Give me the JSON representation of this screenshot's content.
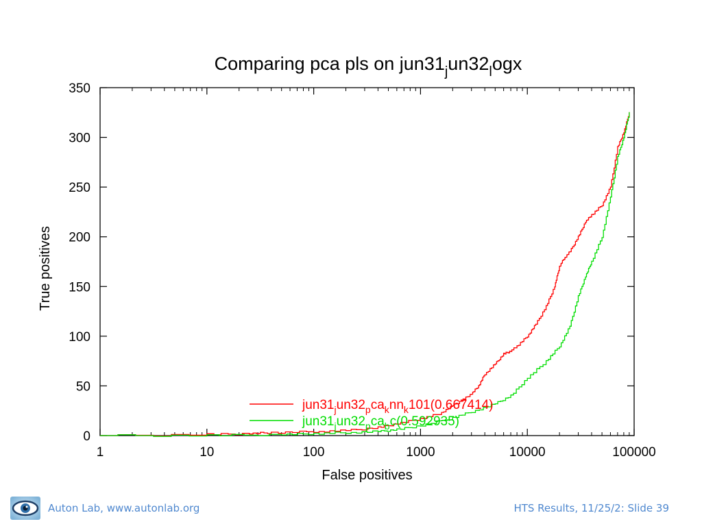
{
  "chart_data": {
    "type": "line",
    "title_parts": [
      {
        "t": "Comparing pca pls on jun31",
        "sub": false
      },
      {
        "t": "j",
        "sub": true
      },
      {
        "t": "un32",
        "sub": false
      },
      {
        "t": "l",
        "sub": true
      },
      {
        "t": "ogx",
        "sub": false
      }
    ],
    "xlabel": "False positives",
    "ylabel": "True positives",
    "xscale": "log",
    "xlim": [
      1,
      100000
    ],
    "ylim": [
      0,
      350
    ],
    "x_ticks": [
      1,
      10,
      100,
      1000,
      10000,
      100000
    ],
    "x_tick_labels": [
      "1",
      "10",
      "100",
      "1000",
      "10000",
      "100000"
    ],
    "y_ticks": [
      0,
      50,
      100,
      150,
      200,
      250,
      300,
      350
    ],
    "y_tick_labels": [
      "0",
      "50",
      "100",
      "150",
      "200",
      "250",
      "300",
      "350"
    ],
    "legend_position": "bottom-center",
    "series": [
      {
        "name_parts": [
          {
            "t": "jun31",
            "sub": false
          },
          {
            "t": "j",
            "sub": true
          },
          {
            "t": "un32",
            "sub": false
          },
          {
            "t": "p",
            "sub": true
          },
          {
            "t": "ca",
            "sub": false
          },
          {
            "t": "k",
            "sub": true
          },
          {
            "t": "nn",
            "sub": false
          },
          {
            "t": "k",
            "sub": true
          },
          {
            "t": "101(0.667414)",
            "sub": false
          }
        ],
        "color": "#ff0000",
        "points": [
          [
            1,
            0
          ],
          [
            10,
            1
          ],
          [
            25,
            2
          ],
          [
            40,
            3
          ],
          [
            100,
            4
          ],
          [
            200,
            5
          ],
          [
            400,
            8
          ],
          [
            600,
            12
          ],
          [
            1000,
            17
          ],
          [
            1500,
            22
          ],
          [
            2000,
            30
          ],
          [
            2500,
            36
          ],
          [
            3000,
            42
          ],
          [
            3500,
            50
          ],
          [
            4000,
            62
          ],
          [
            5000,
            72
          ],
          [
            6000,
            82
          ],
          [
            7000,
            85
          ],
          [
            8000,
            90
          ],
          [
            10000,
            100
          ],
          [
            12000,
            112
          ],
          [
            15000,
            130
          ],
          [
            18000,
            150
          ],
          [
            20000,
            170
          ],
          [
            22000,
            178
          ],
          [
            25000,
            185
          ],
          [
            30000,
            200
          ],
          [
            35000,
            215
          ],
          [
            40000,
            222
          ],
          [
            50000,
            232
          ],
          [
            60000,
            250
          ],
          [
            70000,
            290
          ],
          [
            80000,
            305
          ],
          [
            90000,
            325
          ]
        ]
      },
      {
        "name_parts": [
          {
            "t": "jun31",
            "sub": false
          },
          {
            "t": "j",
            "sub": true
          },
          {
            "t": "un32",
            "sub": false
          },
          {
            "t": "p",
            "sub": true
          },
          {
            "t": "ca",
            "sub": false
          },
          {
            "t": "b",
            "sub": true
          },
          {
            "t": "c(0.592935)",
            "sub": false
          }
        ],
        "color": "#00dd00",
        "points": [
          [
            1,
            0
          ],
          [
            10,
            0
          ],
          [
            50,
            1
          ],
          [
            100,
            2
          ],
          [
            200,
            3
          ],
          [
            400,
            4
          ],
          [
            600,
            6
          ],
          [
            1000,
            10
          ],
          [
            2000,
            18
          ],
          [
            3000,
            24
          ],
          [
            5000,
            32
          ],
          [
            7000,
            40
          ],
          [
            10000,
            58
          ],
          [
            15000,
            75
          ],
          [
            20000,
            90
          ],
          [
            25000,
            110
          ],
          [
            30000,
            140
          ],
          [
            35000,
            160
          ],
          [
            40000,
            175
          ],
          [
            50000,
            200
          ],
          [
            60000,
            240
          ],
          [
            70000,
            280
          ],
          [
            80000,
            300
          ],
          [
            90000,
            325
          ]
        ]
      }
    ]
  },
  "footer": {
    "left_text": "Auton Lab, www.autonlab.org",
    "right_text": "HTS Results, 11/25/2: Slide 39",
    "logo_icon": "eye-logo-icon"
  }
}
